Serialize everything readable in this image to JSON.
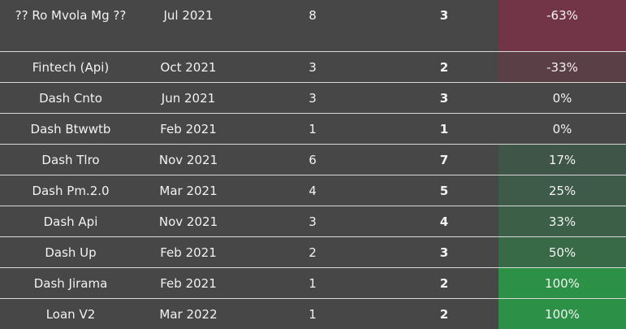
{
  "table": {
    "rows": [
      {
        "name": "?? Ro Mvola Mg ??",
        "date": "Jul 2021",
        "count": "8",
        "total": "3",
        "pct": "-63%",
        "pct_bg": "#723547"
      },
      {
        "name": "Fintech (Api)",
        "date": "Oct 2021",
        "count": "3",
        "total": "2",
        "pct": "-33%",
        "pct_bg": "#5b3f46"
      },
      {
        "name": "Dash Cnto",
        "date": "Jun 2021",
        "count": "3",
        "total": "3",
        "pct": "0%",
        "pct_bg": "#474747"
      },
      {
        "name": "Dash Btwwtb",
        "date": "Feb 2021",
        "count": "1",
        "total": "1",
        "pct": "0%",
        "pct_bg": "#474747"
      },
      {
        "name": "Dash Tlro",
        "date": "Nov 2021",
        "count": "6",
        "total": "7",
        "pct": "17%",
        "pct_bg": "#3f5547"
      },
      {
        "name": "Dash Pm.2.0",
        "date": "Mar 2021",
        "count": "4",
        "total": "5",
        "pct": "25%",
        "pct_bg": "#3e5a48"
      },
      {
        "name": "Dash Api",
        "date": "Nov 2021",
        "count": "3",
        "total": "4",
        "pct": "33%",
        "pct_bg": "#3c5f48"
      },
      {
        "name": "Dash Up",
        "date": "Feb 2021",
        "count": "2",
        "total": "3",
        "pct": "50%",
        "pct_bg": "#386a47"
      },
      {
        "name": "Dash Jirama",
        "date": "Feb 2021",
        "count": "1",
        "total": "2",
        "pct": "100%",
        "pct_bg": "#2c9146"
      },
      {
        "name": "Loan V2",
        "date": "Mar 2022",
        "count": "1",
        "total": "2",
        "pct": "100%",
        "pct_bg": "#2c9146"
      }
    ]
  }
}
